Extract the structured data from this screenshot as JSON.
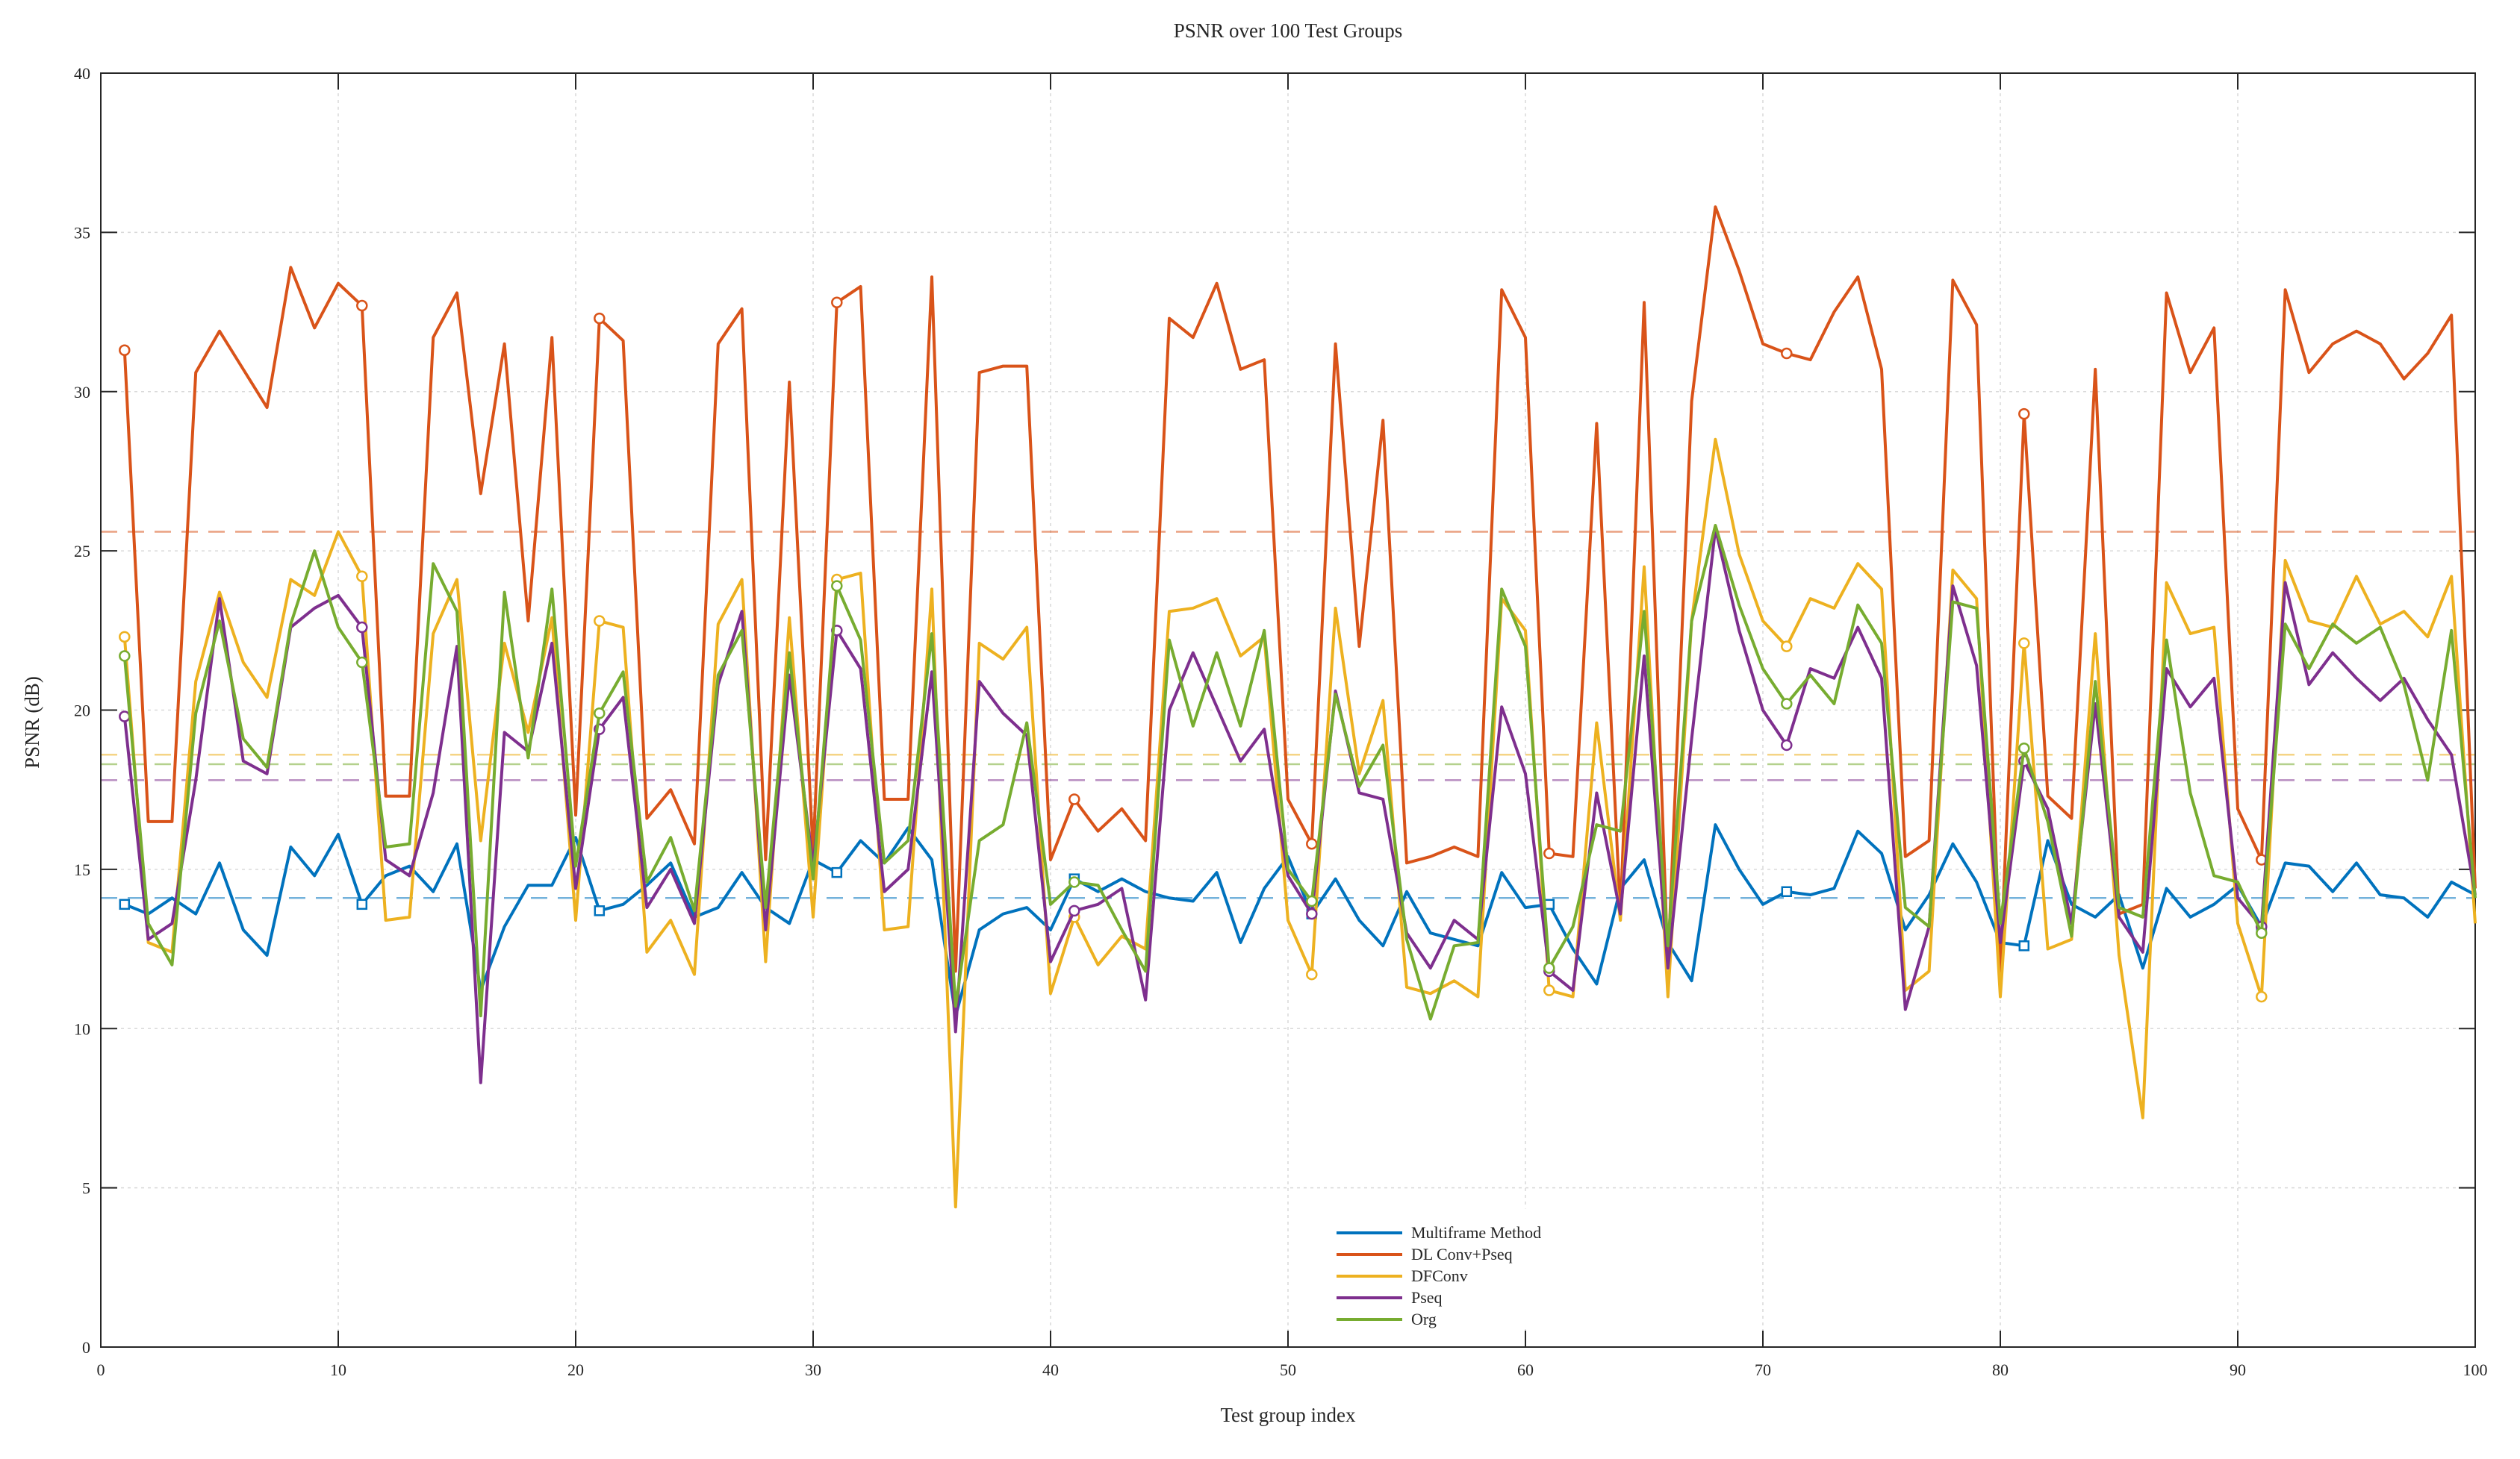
{
  "chart_data": {
    "type": "line",
    "title": "PSNR over 100 Test Groups",
    "xlabel": "Test group index",
    "ylabel": "PSNR (dB)",
    "xlim": [
      0,
      100
    ],
    "ylim": [
      0,
      40
    ],
    "xticks": [
      0,
      10,
      20,
      30,
      40,
      50,
      60,
      70,
      80,
      90,
      100
    ],
    "yticks": [
      0,
      5,
      10,
      15,
      20,
      25,
      30,
      35,
      40
    ],
    "grid": true,
    "legend_position": "bottom-center",
    "x": [
      1,
      2,
      3,
      4,
      5,
      6,
      7,
      8,
      9,
      10,
      11,
      12,
      13,
      14,
      15,
      16,
      17,
      18,
      19,
      20,
      21,
      22,
      23,
      24,
      25,
      26,
      27,
      28,
      29,
      30,
      31,
      32,
      33,
      34,
      35,
      36,
      37,
      38,
      39,
      40,
      41,
      42,
      43,
      44,
      45,
      46,
      47,
      48,
      49,
      50,
      51,
      52,
      53,
      54,
      55,
      56,
      57,
      58,
      59,
      60,
      61,
      62,
      63,
      64,
      65,
      66,
      67,
      68,
      69,
      70,
      71,
      72,
      73,
      74,
      75,
      76,
      77,
      78,
      79,
      80,
      81,
      82,
      83,
      84,
      85,
      86,
      87,
      88,
      89,
      90,
      91,
      92,
      93,
      94,
      95,
      96,
      97,
      98,
      99,
      100
    ],
    "series": [
      {
        "name": "Multiframe Method",
        "color": "#0072BD",
        "marker": "square",
        "marker_indices": [
          1,
          11,
          21,
          31,
          41,
          51,
          61,
          71,
          81,
          91
        ],
        "mean": 14.1,
        "values": [
          13.9,
          13.6,
          14.1,
          13.6,
          15.2,
          13.1,
          12.3,
          15.7,
          14.8,
          16.1,
          13.9,
          14.8,
          15.1,
          14.3,
          15.8,
          11.2,
          13.2,
          14.5,
          14.5,
          16.0,
          13.7,
          13.9,
          14.5,
          15.2,
          13.5,
          13.8,
          14.9,
          13.8,
          13.3,
          15.3,
          14.9,
          15.9,
          15.2,
          16.3,
          15.3,
          10.4,
          13.1,
          13.6,
          13.8,
          13.1,
          14.7,
          14.3,
          14.7,
          14.3,
          14.1,
          14.0,
          14.9,
          12.7,
          14.4,
          15.4,
          13.6,
          14.7,
          13.4,
          12.6,
          14.3,
          13.0,
          12.8,
          12.6,
          14.9,
          13.8,
          13.9,
          12.5,
          11.4,
          14.4,
          15.3,
          12.7,
          11.5,
          16.4,
          15.0,
          13.9,
          14.3,
          14.2,
          14.4,
          16.2,
          15.5,
          13.1,
          14.2,
          15.8,
          14.6,
          12.7,
          12.6,
          15.9,
          13.9,
          13.5,
          14.2,
          11.9,
          14.4,
          13.5,
          13.9,
          14.5,
          13.2,
          15.2,
          15.1,
          14.3,
          15.2,
          14.2,
          14.1,
          13.5,
          14.6,
          14.2
        ]
      },
      {
        "name": "DL Conv+Pseq",
        "color": "#D95319",
        "marker": "circle",
        "marker_indices": [
          1,
          11,
          21,
          31,
          41,
          51,
          61,
          71,
          81,
          91
        ],
        "mean": 25.6,
        "values": [
          31.3,
          16.5,
          16.5,
          30.6,
          31.9,
          30.7,
          29.5,
          33.9,
          32.0,
          33.4,
          32.7,
          17.3,
          17.3,
          31.7,
          33.1,
          26.8,
          31.5,
          22.8,
          31.7,
          16.7,
          32.3,
          31.6,
          16.6,
          17.5,
          15.8,
          31.5,
          32.6,
          15.3,
          30.3,
          15.5,
          32.8,
          33.3,
          17.2,
          17.2,
          33.6,
          11.8,
          30.6,
          30.8,
          30.8,
          15.3,
          17.2,
          16.2,
          16.9,
          15.9,
          32.3,
          31.7,
          33.4,
          30.7,
          31.0,
          17.2,
          15.8,
          31.5,
          22.0,
          29.1,
          15.2,
          15.4,
          15.7,
          15.4,
          33.2,
          31.7,
          15.5,
          15.4,
          29.0,
          13.6,
          32.8,
          12.0,
          29.7,
          35.8,
          33.8,
          31.5,
          31.2,
          31.0,
          32.5,
          33.6,
          30.7,
          15.4,
          15.9,
          33.5,
          32.1,
          11.8,
          29.3,
          17.3,
          16.6,
          30.7,
          13.6,
          13.9,
          33.1,
          30.6,
          32.0,
          16.9,
          15.3,
          33.2,
          30.6,
          31.5,
          31.9,
          31.5,
          30.4,
          31.2,
          32.4,
          14.4
        ]
      },
      {
        "name": "DFConv",
        "color": "#EDB120",
        "marker": "circle",
        "marker_indices": [
          1,
          11,
          21,
          31,
          41,
          51,
          61,
          71,
          81,
          91
        ],
        "mean": 18.6,
        "values": [
          22.3,
          12.7,
          12.4,
          20.9,
          23.7,
          21.5,
          20.4,
          24.1,
          23.6,
          25.6,
          24.2,
          13.4,
          13.5,
          22.4,
          24.1,
          15.9,
          22.1,
          19.3,
          22.9,
          13.4,
          22.8,
          22.6,
          12.4,
          13.4,
          11.7,
          22.7,
          24.1,
          12.1,
          22.9,
          13.5,
          24.1,
          24.3,
          13.1,
          13.2,
          23.8,
          4.4,
          22.1,
          21.6,
          22.6,
          11.1,
          13.5,
          12.0,
          12.9,
          12.5,
          23.1,
          23.2,
          23.5,
          21.7,
          22.3,
          13.4,
          11.7,
          23.2,
          18.0,
          20.3,
          11.3,
          11.1,
          11.5,
          11.0,
          23.5,
          22.5,
          11.2,
          11.0,
          19.6,
          13.4,
          24.5,
          11.0,
          22.8,
          28.5,
          24.9,
          22.8,
          22.0,
          23.5,
          23.2,
          24.6,
          23.8,
          11.2,
          11.8,
          24.4,
          23.5,
          11.0,
          22.1,
          12.5,
          12.8,
          22.4,
          12.3,
          7.2,
          24.0,
          22.4,
          22.6,
          13.3,
          11.0,
          24.7,
          22.8,
          22.6,
          24.2,
          22.7,
          23.1,
          22.3,
          24.2,
          13.3
        ]
      },
      {
        "name": "Pseq",
        "color": "#7E2F8E",
        "marker": "circle",
        "marker_indices": [
          1,
          11,
          21,
          31,
          41,
          51,
          61,
          71,
          81,
          91
        ],
        "mean": 17.8,
        "values": [
          19.8,
          12.8,
          13.3,
          17.8,
          23.5,
          18.4,
          18.0,
          22.6,
          23.2,
          23.6,
          22.6,
          15.3,
          14.8,
          17.4,
          22.0,
          8.3,
          19.3,
          18.7,
          22.1,
          14.4,
          19.4,
          20.4,
          13.8,
          15.0,
          13.3,
          20.8,
          23.1,
          13.1,
          21.1,
          15.1,
          22.5,
          21.3,
          14.3,
          15.0,
          21.2,
          9.9,
          20.9,
          19.9,
          19.2,
          12.1,
          13.7,
          13.9,
          14.4,
          10.9,
          20.0,
          21.8,
          20.1,
          18.4,
          19.4,
          14.8,
          13.6,
          20.6,
          17.4,
          17.2,
          13.0,
          11.9,
          13.4,
          12.8,
          20.1,
          18.0,
          11.8,
          11.2,
          17.4,
          13.6,
          21.7,
          11.9,
          19.1,
          25.7,
          22.5,
          20.0,
          18.9,
          21.3,
          21.0,
          22.6,
          21.0,
          10.6,
          13.2,
          23.9,
          21.4,
          12.7,
          18.4,
          16.9,
          13.3,
          20.2,
          13.5,
          12.4,
          21.3,
          20.1,
          21.0,
          14.1,
          13.2,
          24.0,
          20.8,
          21.8,
          21.0,
          20.3,
          21.0,
          19.7,
          18.6,
          14.2
        ]
      },
      {
        "name": "Org",
        "color": "#77AC30",
        "marker": "circle",
        "marker_indices": [
          1,
          11,
          21,
          31,
          41,
          51,
          61,
          71,
          81,
          91
        ],
        "mean": 18.3,
        "values": [
          21.7,
          13.3,
          12.0,
          19.9,
          22.8,
          19.1,
          18.2,
          22.7,
          25.0,
          22.6,
          21.5,
          15.7,
          15.8,
          24.6,
          23.1,
          10.4,
          23.7,
          18.5,
          23.8,
          15.1,
          19.9,
          21.2,
          14.6,
          16.0,
          13.7,
          21.1,
          22.5,
          13.8,
          21.8,
          14.7,
          23.9,
          22.2,
          15.2,
          15.9,
          22.4,
          10.7,
          15.9,
          16.4,
          19.6,
          13.9,
          14.6,
          14.5,
          13.1,
          11.8,
          22.2,
          19.5,
          21.8,
          19.5,
          22.5,
          15.0,
          14.0,
          20.5,
          17.6,
          18.9,
          12.8,
          10.3,
          12.6,
          12.7,
          23.8,
          22.0,
          11.9,
          13.2,
          16.4,
          16.2,
          23.1,
          12.6,
          22.8,
          25.8,
          23.3,
          21.3,
          20.2,
          21.1,
          20.2,
          23.3,
          22.1,
          13.8,
          13.2,
          23.4,
          23.2,
          13.3,
          18.8,
          16.5,
          12.9,
          20.9,
          13.8,
          13.5,
          22.2,
          17.4,
          14.8,
          14.6,
          13.0,
          22.7,
          21.3,
          22.7,
          22.1,
          22.6,
          20.8,
          17.8,
          22.5,
          14.1
        ]
      }
    ]
  }
}
